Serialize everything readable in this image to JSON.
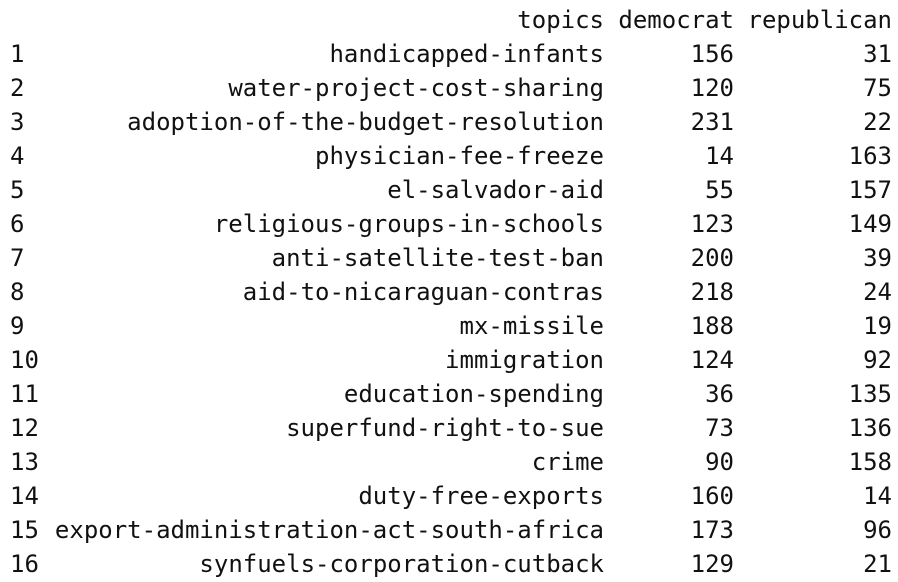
{
  "table": {
    "columns": [
      "topics",
      "democrat",
      "republican"
    ],
    "rows": [
      {
        "index": "1",
        "topic": "handicapped-infants",
        "democrat": "156",
        "republican": "31"
      },
      {
        "index": "2",
        "topic": "water-project-cost-sharing",
        "democrat": "120",
        "republican": "75"
      },
      {
        "index": "3",
        "topic": "adoption-of-the-budget-resolution",
        "democrat": "231",
        "republican": "22"
      },
      {
        "index": "4",
        "topic": "physician-fee-freeze",
        "democrat": "14",
        "republican": "163"
      },
      {
        "index": "5",
        "topic": "el-salvador-aid",
        "democrat": "55",
        "republican": "157"
      },
      {
        "index": "6",
        "topic": "religious-groups-in-schools",
        "democrat": "123",
        "republican": "149"
      },
      {
        "index": "7",
        "topic": "anti-satellite-test-ban",
        "democrat": "200",
        "republican": "39"
      },
      {
        "index": "8",
        "topic": "aid-to-nicaraguan-contras",
        "democrat": "218",
        "republican": "24"
      },
      {
        "index": "9",
        "topic": "mx-missile",
        "democrat": "188",
        "republican": "19"
      },
      {
        "index": "10",
        "topic": "immigration",
        "democrat": "124",
        "republican": "92"
      },
      {
        "index": "11",
        "topic": "education-spending",
        "democrat": "36",
        "republican": "135"
      },
      {
        "index": "12",
        "topic": "superfund-right-to-sue",
        "democrat": "73",
        "republican": "136"
      },
      {
        "index": "13",
        "topic": "crime",
        "democrat": "90",
        "republican": "158"
      },
      {
        "index": "14",
        "topic": "duty-free-exports",
        "democrat": "160",
        "republican": "14"
      },
      {
        "index": "15",
        "topic": "export-administration-act-south-africa",
        "democrat": "173",
        "republican": "96"
      },
      {
        "index": "16",
        "topic": "synfuels-corporation-cutback",
        "democrat": "129",
        "republican": "21"
      }
    ]
  }
}
